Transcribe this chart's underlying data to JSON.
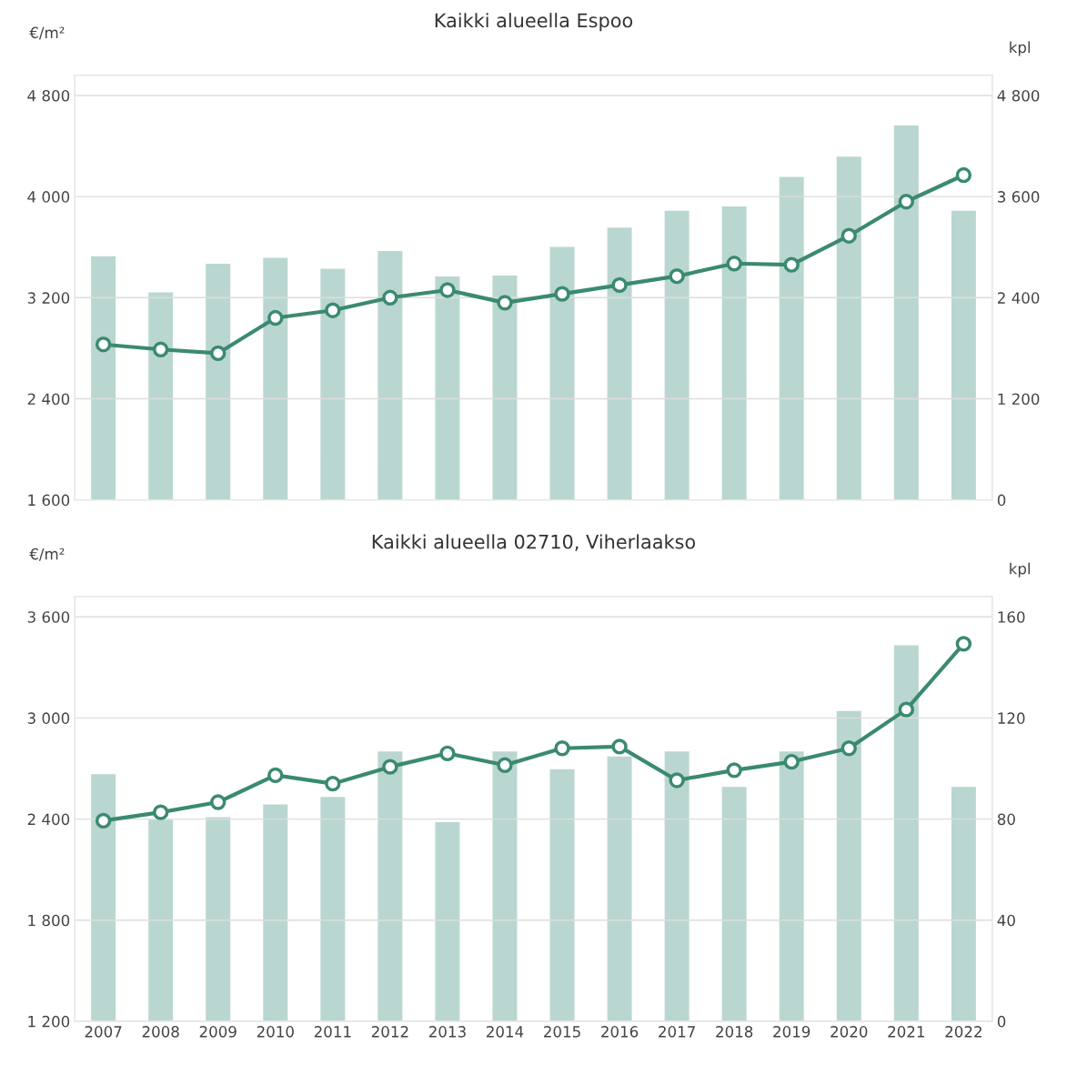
{
  "chart_data": [
    {
      "type": "bar",
      "title": "Kaikki alueella Espoo",
      "ylabel": "€/m²",
      "y2label": "kpl",
      "categories": [
        "2007",
        "2008",
        "2009",
        "2010",
        "2011",
        "2012",
        "2013",
        "2014",
        "2015",
        "2016",
        "2017",
        "2018",
        "2019",
        "2020",
        "2021",
        "2022"
      ],
      "series": [
        {
          "axis": "y2",
          "color": "#bad6d0",
          "values": [
            2900,
            2470,
            2810,
            2880,
            2750,
            2960,
            2660,
            2670,
            3010,
            3240,
            3440,
            3490,
            3840,
            4080,
            4450,
            3440
          ]
        },
        {
          "type": "line",
          "axis": "y",
          "color": "#3a8a70",
          "marker": "circle",
          "values": [
            2830,
            2790,
            2760,
            3040,
            3100,
            3200,
            3260,
            3160,
            3230,
            3300,
            3370,
            3470,
            3460,
            3690,
            3960,
            4170
          ]
        }
      ],
      "ylim": [
        1600,
        4960
      ],
      "yticks": [
        {
          "value": 1600,
          "label": "1 600"
        },
        {
          "value": 2400,
          "label": "2 400"
        },
        {
          "value": 3200,
          "label": "3 200"
        },
        {
          "value": 4000,
          "label": "4 000"
        },
        {
          "value": 4800,
          "label": "4 800"
        }
      ],
      "y2lim": [
        0,
        5040
      ],
      "y2ticks": [
        0,
        {
          "value": 1200,
          "label": "1 200"
        },
        {
          "value": 2400,
          "label": "2 400"
        },
        {
          "value": 3600,
          "label": "3 600"
        },
        {
          "value": 4800,
          "label": "4 800"
        }
      ],
      "grid": "y",
      "tick_labels": "y",
      "legend": false
    },
    {
      "type": "bar",
      "title": "Kaikki alueella 02710, Viherlaakso",
      "ylabel": "€/m²",
      "y2label": "kpl",
      "categories": [
        "2007",
        "2008",
        "2009",
        "2010",
        "2011",
        "2012",
        "2013",
        "2014",
        "2015",
        "2016",
        "2017",
        "2018",
        "2019",
        "2020",
        "2021",
        "2022"
      ],
      "series": [
        {
          "axis": "y2",
          "color": "#bad6d0",
          "values": [
            98,
            80,
            81,
            86,
            89,
            107,
            79,
            107,
            100,
            105,
            107,
            93,
            107,
            123,
            149,
            93
          ]
        },
        {
          "type": "line",
          "axis": "y",
          "color": "#3a8a70",
          "marker": "circle",
          "values": [
            2390,
            2440,
            2500,
            2660,
            2610,
            2710,
            2790,
            2720,
            2820,
            2830,
            2630,
            2690,
            2740,
            2820,
            3050,
            3440
          ]
        }
      ],
      "ylim": [
        1200,
        3720
      ],
      "yticks": [
        {
          "value": 1200,
          "label": "1 200"
        },
        {
          "value": 1800,
          "label": "1 800"
        },
        {
          "value": 2400,
          "label": "2 400"
        },
        {
          "value": 3000,
          "label": "3 000"
        },
        {
          "value": 3600,
          "label": "3 600"
        }
      ],
      "y2lim": [
        0,
        168
      ],
      "y2ticks": [
        0,
        40,
        80,
        120,
        160
      ],
      "grid": "y",
      "legend": false
    }
  ]
}
